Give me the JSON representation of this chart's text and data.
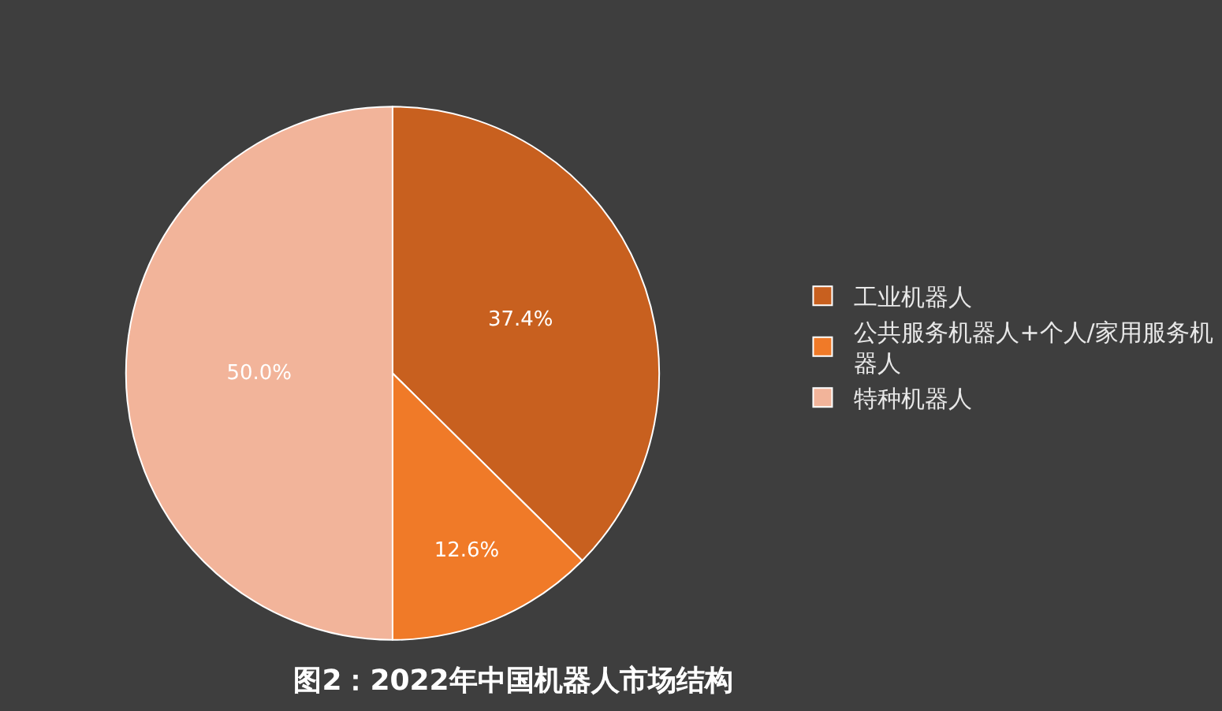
{
  "chart_data": {
    "type": "pie",
    "title": "图2：2022年中国机器人市场结构",
    "categories": [
      "工业机器人",
      "公共服务机器人+个人/家用服务机器人",
      "特种机器人"
    ],
    "values": [
      37.4,
      12.6,
      50.0
    ],
    "colors": [
      "#c8601f",
      "#f07a28",
      "#f2b49a"
    ],
    "value_labels": [
      "37.4%",
      "12.6%",
      "50.0%"
    ],
    "legend": "right"
  }
}
